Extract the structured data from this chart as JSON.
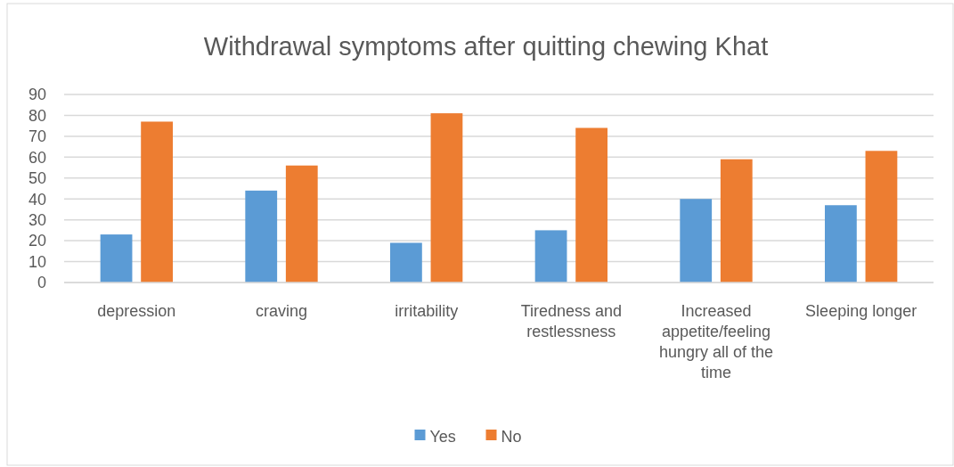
{
  "chart_data": {
    "type": "bar",
    "title": "Withdrawal symptoms after quitting chewing Khat",
    "categories": [
      "depression",
      "craving",
      "irritability",
      "Tiredness and restlessness",
      "Increased appetite/feeling hungry all of the time",
      "Sleeping longer"
    ],
    "series": [
      {
        "name": "Yes",
        "color": "#5b9bd5",
        "values": [
          23,
          44,
          19,
          25,
          40,
          37
        ]
      },
      {
        "name": "No",
        "color": "#ed7d31",
        "values": [
          77,
          56,
          81,
          74,
          59,
          63
        ]
      }
    ],
    "ylim": [
      0,
      90
    ],
    "yticks": [
      0,
      10,
      20,
      30,
      40,
      50,
      60,
      70,
      80,
      90
    ],
    "grid": "y",
    "legend": "bottom"
  }
}
